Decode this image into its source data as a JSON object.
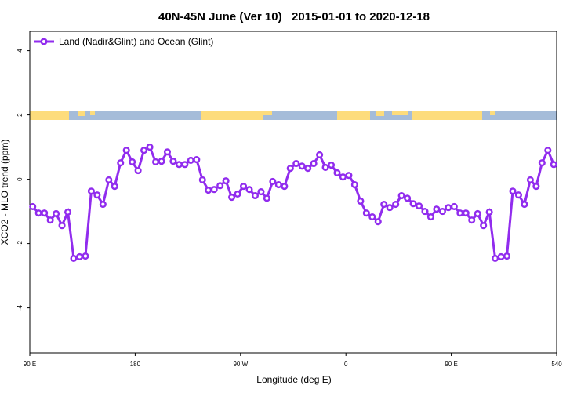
{
  "chart_data": {
    "type": "line",
    "title": "40N-45N June (Ver 10)   2015-01-01 to 2020-12-18",
    "x_label": "Longitude (deg E)",
    "y_label": "XCO2 - MLO trend (ppm)",
    "x": [
      92.5,
      97.5,
      102.5,
      107.5,
      112.5,
      117.5,
      122.5,
      127.5,
      132.5,
      137.5,
      142.5,
      147.5,
      152.5,
      157.5,
      162.5,
      167.5,
      172.5,
      177.5,
      182.5,
      187.5,
      192.5,
      197.5,
      202.5,
      207.5,
      212.5,
      217.5,
      222.5,
      227.5,
      232.5,
      237.5,
      242.5,
      247.5,
      252.5,
      257.5,
      262.5,
      267.5,
      272.5,
      277.5,
      282.5,
      287.5,
      292.5,
      297.5,
      302.5,
      307.5,
      312.5,
      317.5,
      322.5,
      327.5,
      332.5,
      337.5,
      342.5,
      347.5,
      352.5,
      357.5,
      362.5,
      367.5,
      372.5,
      377.5,
      382.5,
      387.5,
      392.5,
      397.5,
      402.5,
      407.5,
      412.5,
      417.5,
      422.5,
      427.5,
      432.5,
      437.5,
      442.5,
      447.5,
      452.5,
      457.5,
      462.5,
      467.5,
      472.5,
      477.5,
      482.5,
      487.5,
      492.5,
      497.5,
      502.5,
      507.5,
      512.5,
      517.5,
      522.5,
      527.5,
      532.5,
      537.5
    ],
    "series": [
      {
        "name": "Land (Nadir&Glint) and Ocean (Glint)",
        "color": "#912cee",
        "values": [
          -0.85,
          -1.05,
          -1.05,
          -1.27,
          -1.07,
          -1.44,
          -1.02,
          -2.46,
          -2.41,
          -2.39,
          -0.37,
          -0.49,
          -0.78,
          -0.02,
          -0.22,
          0.51,
          0.9,
          0.54,
          0.27,
          0.9,
          1.0,
          0.54,
          0.56,
          0.85,
          0.56,
          0.46,
          0.46,
          0.59,
          0.61,
          -0.02,
          -0.34,
          -0.32,
          -0.2,
          -0.05,
          -0.56,
          -0.46,
          -0.22,
          -0.32,
          -0.51,
          -0.39,
          -0.59,
          -0.07,
          -0.17,
          -0.22,
          0.34,
          0.49,
          0.41,
          0.34,
          0.49,
          0.76,
          0.37,
          0.44,
          0.2,
          0.07,
          0.12,
          -0.17,
          -0.68,
          -1.05,
          -1.17,
          -1.32,
          -0.78,
          -0.88,
          -0.78,
          -0.51,
          -0.59,
          -0.76,
          -0.83,
          -1.0,
          -1.17,
          -0.93,
          -1.0,
          -0.88,
          -0.85,
          -1.05,
          -1.05,
          -1.27,
          -1.07,
          -1.44,
          -1.02,
          -2.46,
          -2.41,
          -2.39,
          -0.37,
          -0.49,
          -0.78,
          -0.02,
          -0.22,
          0.51,
          0.9,
          0.46
        ]
      }
    ],
    "xlim": [
      90,
      540
    ],
    "xticks": [
      {
        "value": 90,
        "label": "90 E"
      },
      180,
      {
        "value": 270,
        "label": "90 W"
      },
      {
        "value": 360,
        "label": "0"
      },
      {
        "value": 450,
        "label": "90 E"
      },
      540
    ],
    "ylim": [
      -5.4,
      4.6
    ],
    "yticks": [
      -4,
      -2,
      0,
      2,
      4
    ],
    "legend": "top-left"
  }
}
